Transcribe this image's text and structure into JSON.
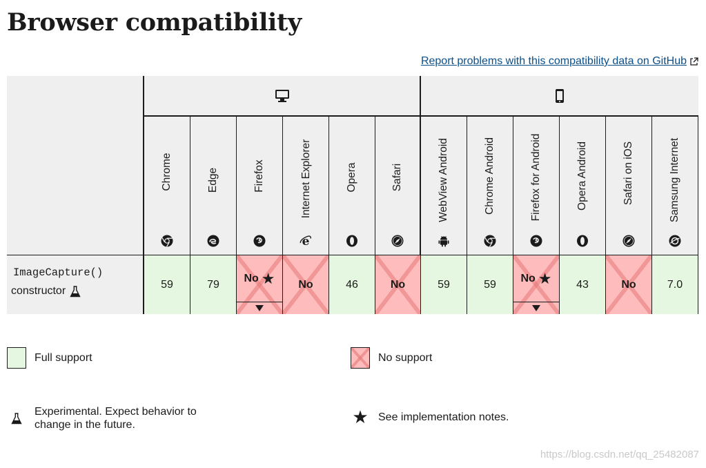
{
  "page": {
    "title": "Browser compatibility",
    "report_link": "Report problems with this compatibility data on GitHub"
  },
  "groups": {
    "desktop_icon": "desktop-icon",
    "mobile_icon": "mobile-phone-icon"
  },
  "browsers": [
    {
      "name": "Chrome",
      "icon": "chrome-icon"
    },
    {
      "name": "Edge",
      "icon": "edge-icon"
    },
    {
      "name": "Firefox",
      "icon": "firefox-icon"
    },
    {
      "name": "Internet Explorer",
      "icon": "internet-explorer-icon"
    },
    {
      "name": "Opera",
      "icon": "opera-icon"
    },
    {
      "name": "Safari",
      "icon": "safari-icon"
    },
    {
      "name": "WebView Android",
      "icon": "android-icon"
    },
    {
      "name": "Chrome Android",
      "icon": "chrome-icon"
    },
    {
      "name": "Firefox for Android",
      "icon": "firefox-icon"
    },
    {
      "name": "Opera Android",
      "icon": "opera-icon"
    },
    {
      "name": "Safari on iOS",
      "icon": "safari-icon"
    },
    {
      "name": "Samsung Internet",
      "icon": "samsung-internet-icon"
    }
  ],
  "feature": {
    "code": "ImageCapture()",
    "label": "constructor"
  },
  "support": [
    {
      "value": "59"
    },
    {
      "value": "79"
    },
    {
      "value": "No"
    },
    {
      "value": "No"
    },
    {
      "value": "46"
    },
    {
      "value": "No"
    },
    {
      "value": "59"
    },
    {
      "value": "59"
    },
    {
      "value": "No"
    },
    {
      "value": "43"
    },
    {
      "value": "No"
    },
    {
      "value": "7.0"
    }
  ],
  "legend": {
    "full_support": "Full support",
    "no_support": "No support",
    "experimental": "Experimental. Expect behavior to change in the future.",
    "notes": "See implementation notes."
  },
  "watermark": "https://blog.csdn.net/qq_25482087",
  "colors": {
    "full_support_bg": "#e5f7e0",
    "no_support_bg": "#ffbcbc",
    "header_bg": "#efefef",
    "link": "#0b4f8a"
  }
}
